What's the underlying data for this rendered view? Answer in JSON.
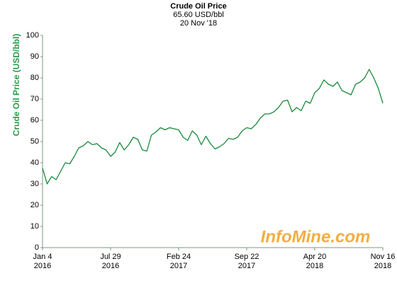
{
  "chart_data": {
    "type": "line",
    "title": "Crude Oil Price",
    "subtitle": "65.60 USD/bbl",
    "date": "20 Nov '18",
    "y_label": "Crude Oil Price (USD/bbl)",
    "watermark": "InfoMine.com",
    "color": "#188a3a",
    "grid": false,
    "categories": [
      [
        "Jan 4",
        "2016"
      ],
      null,
      null,
      null,
      null,
      null,
      null,
      null,
      null,
      null,
      null,
      null,
      null,
      null,
      null,
      [
        "Jul 29",
        "2016"
      ],
      null,
      null,
      null,
      null,
      null,
      null,
      null,
      null,
      null,
      null,
      null,
      null,
      null,
      null,
      [
        "Feb 24",
        "2017"
      ],
      null,
      null,
      null,
      null,
      null,
      null,
      null,
      null,
      null,
      null,
      null,
      null,
      null,
      null,
      [
        "Sep 22",
        "2017"
      ],
      null,
      null,
      null,
      null,
      null,
      null,
      null,
      null,
      null,
      null,
      null,
      null,
      null,
      null,
      [
        "Apr 20",
        "2018"
      ],
      null,
      null,
      null,
      null,
      null,
      null,
      null,
      null,
      null,
      null,
      null,
      null,
      null,
      null,
      [
        "Nov 16",
        "2018"
      ]
    ],
    "values": [
      37.5,
      30,
      33.5,
      32,
      36,
      40,
      39.5,
      43,
      47,
      48,
      50,
      48.5,
      49,
      47,
      46,
      43,
      45,
      49.5,
      46,
      48.5,
      52,
      51,
      46,
      45.5,
      53,
      54.5,
      56.5,
      55.5,
      56.5,
      56,
      55.5,
      52,
      50.5,
      55,
      53,
      48.5,
      52.5,
      49,
      46.5,
      47.5,
      49,
      51.5,
      51,
      52,
      55,
      56.5,
      56,
      58,
      61,
      63,
      63,
      64,
      66,
      69,
      69.5,
      64,
      66,
      64.5,
      69,
      68,
      73,
      75,
      79,
      77,
      76,
      78,
      74,
      73,
      72,
      77,
      78,
      80,
      84,
      80,
      75,
      68
    ],
    "ylim": [
      0,
      100
    ],
    "yticks": [
      0,
      10,
      20,
      30,
      40,
      50,
      60,
      70,
      80,
      90,
      100
    ]
  }
}
